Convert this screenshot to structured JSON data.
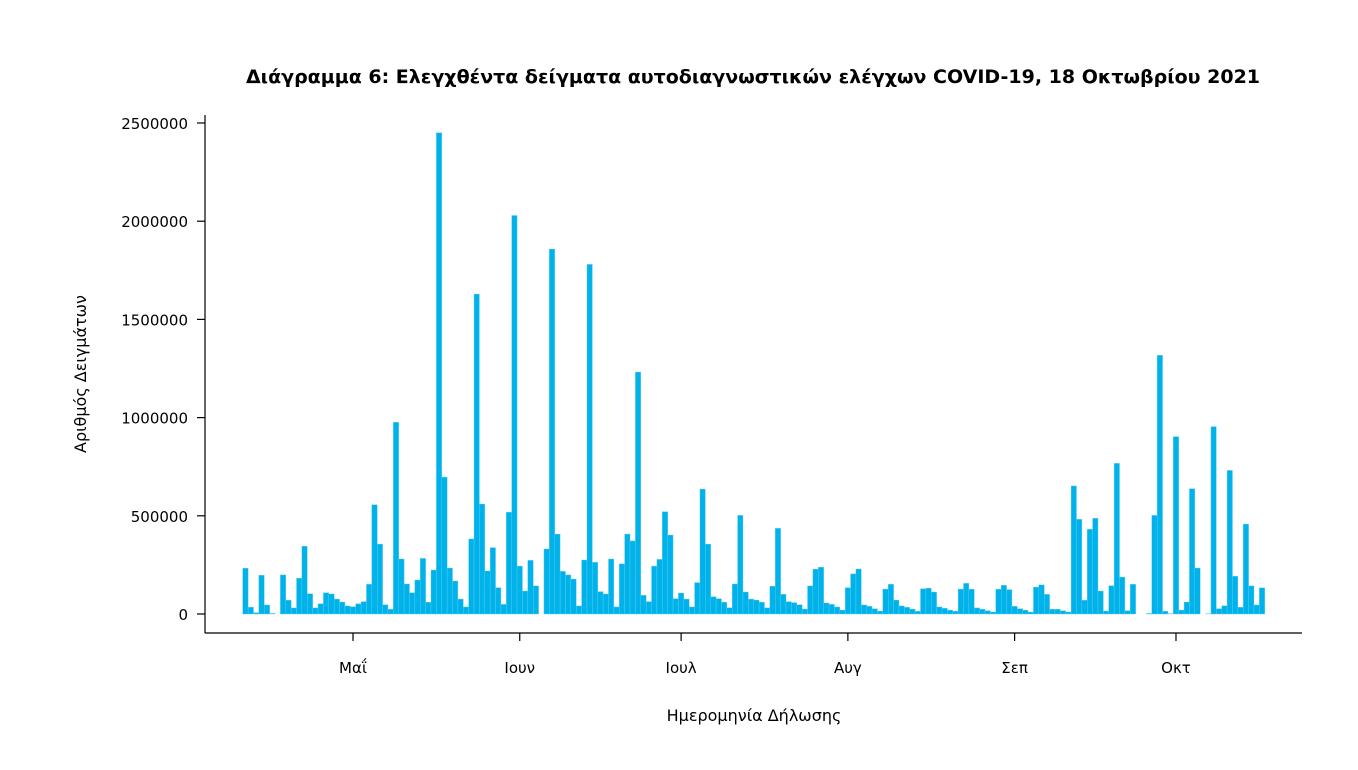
{
  "chart_data": {
    "type": "bar",
    "title": "Διάγραμμα 6: Ελεγχθέντα δείγματα αυτοδιαγνωστικών ελέγχων COVID-19, 18 Οκτωβρίου 2021",
    "xlabel": "Ημερομηνία Δήλωσης",
    "ylabel": "Αριθμός Δειγμάτων",
    "ylim": [
      0,
      2500000
    ],
    "yticks": [
      {
        "value": 0,
        "label": "0"
      },
      {
        "value": 500000,
        "label": "500000"
      },
      {
        "value": 1000000,
        "label": "1000000"
      },
      {
        "value": 1500000,
        "label": "1500000"
      },
      {
        "value": 2000000,
        "label": "2000000"
      },
      {
        "value": 2500000,
        "label": "2500000"
      }
    ],
    "xticks": [
      {
        "day_index": 20,
        "label": "Μαΐ"
      },
      {
        "day_index": 51,
        "label": "Ιουν"
      },
      {
        "day_index": 81,
        "label": "Ιουλ"
      },
      {
        "day_index": 112,
        "label": "Αυγ"
      },
      {
        "day_index": 143,
        "label": "Σεπ"
      },
      {
        "day_index": 173,
        "label": "Οκτ"
      }
    ],
    "x_start_date": "2021-04-11",
    "grid": false,
    "color": "#00b2ea",
    "values": [
      233000,
      35000,
      7000,
      197000,
      46000,
      3000,
      0,
      199000,
      70000,
      31000,
      182000,
      345000,
      103000,
      31000,
      52000,
      108000,
      102000,
      76000,
      61000,
      41000,
      37000,
      52000,
      63000,
      151000,
      556000,
      356000,
      47000,
      24000,
      976000,
      280000,
      153000,
      108000,
      173000,
      283000,
      60000,
      224000,
      2450000,
      697000,
      234000,
      168000,
      76000,
      36000,
      382000,
      1629000,
      560000,
      219000,
      338000,
      134000,
      49000,
      518000,
      2029000,
      244000,
      117000,
      273000,
      143000,
      0,
      331000,
      1858000,
      407000,
      217000,
      199000,
      178000,
      41000,
      275000,
      1780000,
      263000,
      114000,
      102000,
      280000,
      36000,
      255000,
      407000,
      372000,
      1232000,
      95000,
      63000,
      244000,
      278000,
      521000,
      402000,
      78000,
      107000,
      76000,
      36000,
      160000,
      636000,
      356000,
      88000,
      78000,
      60000,
      32000,
      153000,
      502000,
      112000,
      76000,
      71000,
      60000,
      31000,
      141000,
      436000,
      100000,
      63000,
      58000,
      47000,
      25000,
      143000,
      228000,
      238000,
      56000,
      49000,
      36000,
      20000,
      134000,
      204000,
      229000,
      46000,
      39000,
      27000,
      15000,
      127000,
      151000,
      71000,
      41000,
      34000,
      25000,
      14000,
      129000,
      131000,
      112000,
      36000,
      29000,
      20000,
      14000,
      127000,
      156000,
      126000,
      31000,
      24000,
      17000,
      10000,
      126000,
      146000,
      124000,
      39000,
      27000,
      19000,
      10000,
      137000,
      148000,
      100000,
      24000,
      24000,
      17000,
      10000,
      652000,
      482000,
      70000,
      431000,
      487000,
      117000,
      15000,
      144000,
      767000,
      188000,
      17000,
      151000,
      0,
      0,
      3000,
      502000,
      1317000,
      14000,
      2000,
      903000,
      20000,
      61000,
      638000,
      234000,
      0,
      1000,
      954000,
      27000,
      42000,
      731000,
      192000,
      34000,
      458000,
      143000,
      46000,
      133000
    ]
  }
}
